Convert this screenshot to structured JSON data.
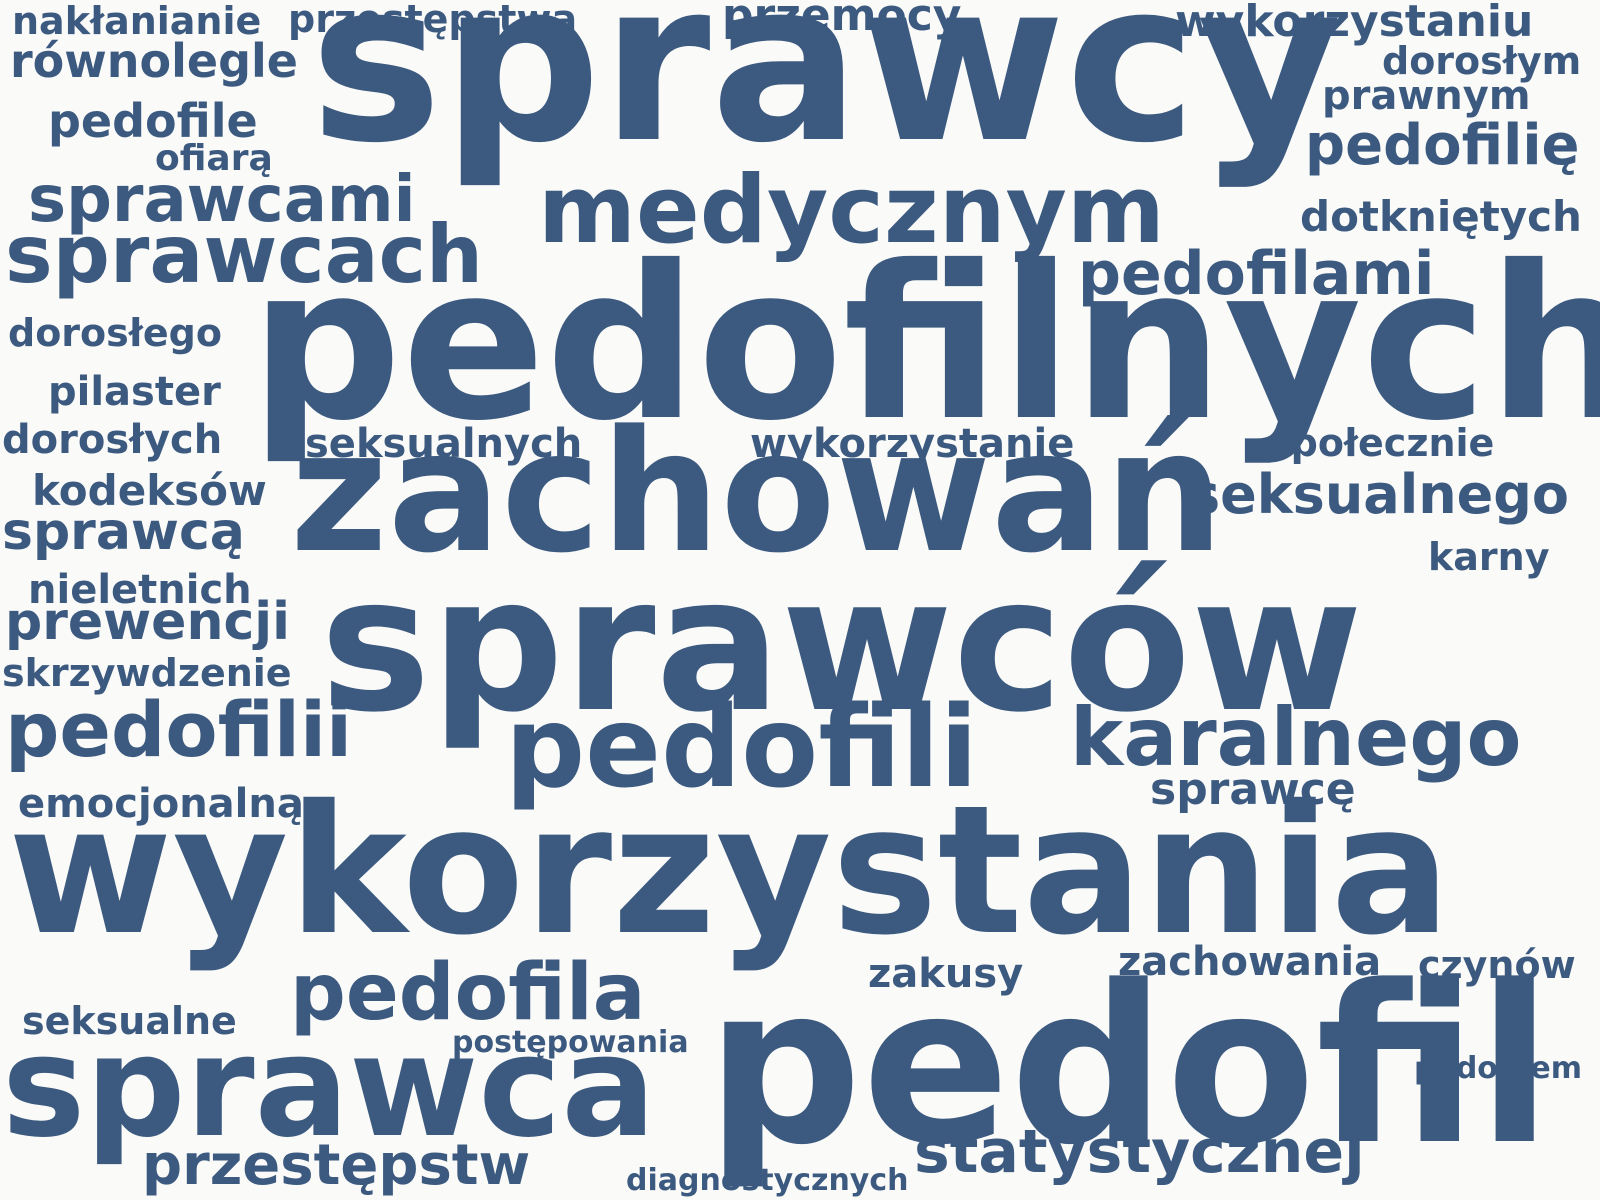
{
  "colors": {
    "background": "#fafaf8",
    "word": "#3c5a80"
  },
  "words": [
    "nakłanianie",
    "przestępstwa",
    "przemocy",
    "wykorzystaniu",
    "równolegle",
    "sprawcy",
    "dorosłym",
    "prawnym",
    "pedofile",
    "pedofilię",
    "ofiarą",
    "sprawcami",
    "medycznym",
    "dotkniętych",
    "sprawcach",
    "pedofilami",
    "pedofilnych",
    "dorosłego",
    "pilaster",
    "dorosłych",
    "seksualnych",
    "wykorzystanie",
    "społecznie",
    "zachowań",
    "kodeksów",
    "seksualnego",
    "sprawcą",
    "karny",
    "nieletnich",
    "sprawców",
    "prewencji",
    "skrzywdzenie",
    "pedofilii",
    "pedofili",
    "karalnego",
    "sprawcę",
    "emocjonalną",
    "wykorzystania",
    "zachowania",
    "czynów",
    "zakusy",
    "pedofila",
    "seksualne",
    "postępowania",
    "sprawca",
    "pedofil",
    "pedofilem",
    "przestępstw",
    "statystycznej",
    "diagnostycznych"
  ]
}
